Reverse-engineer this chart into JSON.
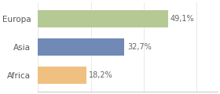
{
  "categories": [
    "Europa",
    "Asia",
    "Africa"
  ],
  "values": [
    49.1,
    32.7,
    18.2
  ],
  "labels": [
    "49,1%",
    "32,7%",
    "18,2%"
  ],
  "bar_colors": [
    "#b5c994",
    "#7189b5",
    "#f0c080"
  ],
  "background_color": "#ffffff",
  "xlim": [
    0,
    68
  ],
  "bar_height": 0.62,
  "label_fontsize": 7,
  "tick_fontsize": 7.5,
  "label_color": "#666666",
  "tick_color": "#555555"
}
